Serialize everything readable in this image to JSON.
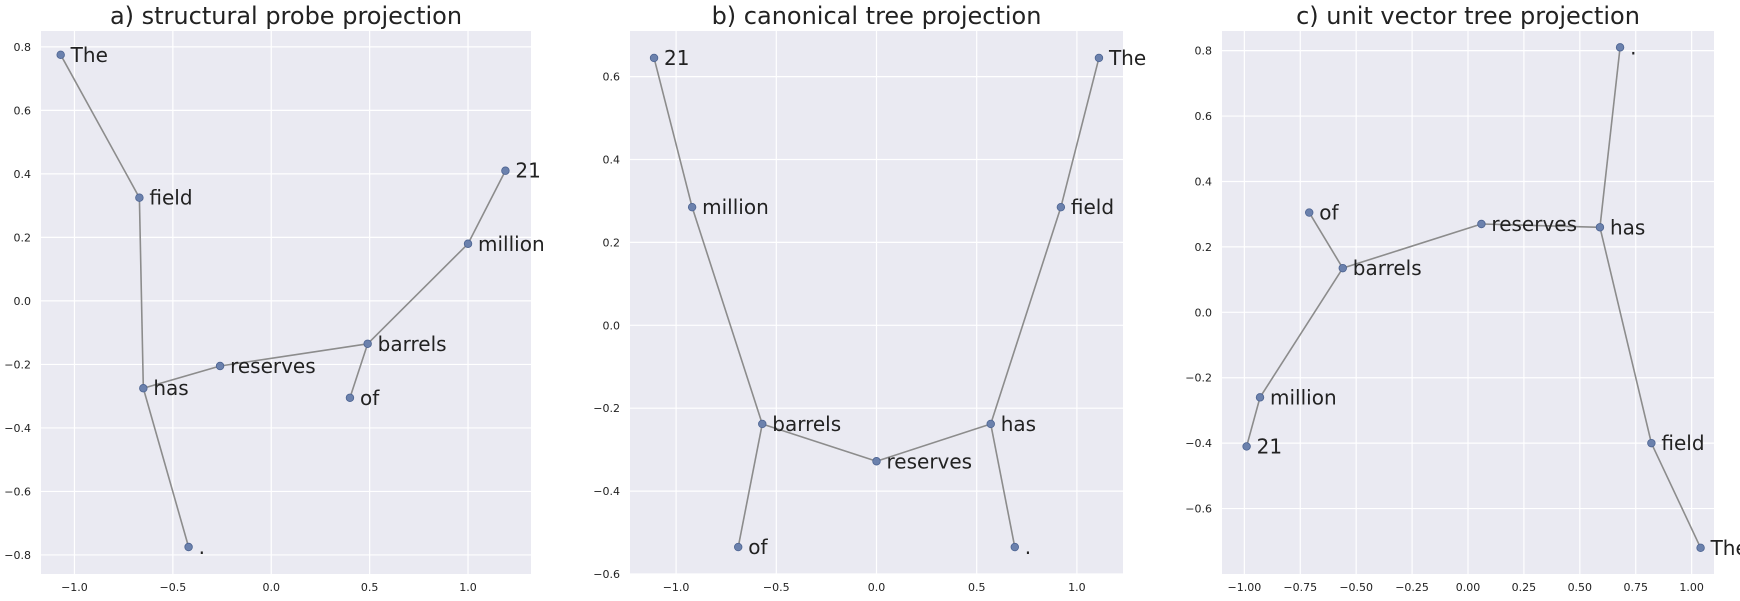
{
  "chart_data": [
    {
      "type": "scatter",
      "title": "a) structural probe projection",
      "xlim": [
        -1.17,
        1.32
      ],
      "ylim": [
        -0.86,
        0.85
      ],
      "xticks": [
        -1.0,
        -0.5,
        0.0,
        0.5,
        1.0
      ],
      "xtick_labels": [
        "−1.0",
        "−0.5",
        "0.0",
        "0.5",
        "1.0"
      ],
      "yticks": [
        -0.8,
        -0.6,
        -0.4,
        -0.2,
        0.0,
        0.2,
        0.4,
        0.6,
        0.8
      ],
      "ytick_labels": [
        "−0.8",
        "−0.6",
        "−0.4",
        "−0.2",
        "0.0",
        "0.2",
        "0.4",
        "0.6",
        "0.8"
      ],
      "grid": true,
      "points": [
        {
          "label": "The",
          "x": -1.07,
          "y": 0.775
        },
        {
          "label": "field",
          "x": -0.67,
          "y": 0.325
        },
        {
          "label": "has",
          "x": -0.65,
          "y": -0.275
        },
        {
          "label": "reserves",
          "x": -0.26,
          "y": -0.205
        },
        {
          "label": "barrels",
          "x": 0.49,
          "y": -0.135
        },
        {
          "label": "of",
          "x": 0.4,
          "y": -0.305
        },
        {
          "label": "million",
          "x": 1.0,
          "y": 0.18
        },
        {
          "label": "21",
          "x": 1.19,
          "y": 0.41
        },
        {
          "label": ".",
          "x": -0.42,
          "y": -0.775
        }
      ],
      "edges": [
        [
          0,
          1
        ],
        [
          1,
          2
        ],
        [
          2,
          3
        ],
        [
          3,
          4
        ],
        [
          4,
          5
        ],
        [
          4,
          6
        ],
        [
          6,
          7
        ],
        [
          2,
          8
        ]
      ]
    },
    {
      "type": "scatter",
      "title": "b) canonical tree projection",
      "xlim": [
        -1.23,
        1.23
      ],
      "ylim": [
        -0.6,
        0.71
      ],
      "xticks": [
        -1.0,
        -0.5,
        0.0,
        0.5,
        1.0
      ],
      "xtick_labels": [
        "−1.0",
        "−0.5",
        "0.0",
        "0.5",
        "1.0"
      ],
      "yticks": [
        -0.6,
        -0.4,
        -0.2,
        0.0,
        0.2,
        0.4,
        0.6
      ],
      "ytick_labels": [
        "−0.6",
        "−0.4",
        "−0.2",
        "0.0",
        "0.2",
        "0.4",
        "0.6"
      ],
      "grid": true,
      "points": [
        {
          "label": "21",
          "x": -1.11,
          "y": 0.645
        },
        {
          "label": "million",
          "x": -0.92,
          "y": 0.285
        },
        {
          "label": "barrels",
          "x": -0.57,
          "y": -0.238
        },
        {
          "label": "of",
          "x": -0.69,
          "y": -0.535
        },
        {
          "label": "reserves",
          "x": 0.0,
          "y": -0.328
        },
        {
          "label": "has",
          "x": 0.57,
          "y": -0.238
        },
        {
          "label": ".",
          "x": 0.69,
          "y": -0.535
        },
        {
          "label": "field",
          "x": 0.92,
          "y": 0.285
        },
        {
          "label": "The",
          "x": 1.11,
          "y": 0.645
        }
      ],
      "edges": [
        [
          0,
          1
        ],
        [
          1,
          2
        ],
        [
          2,
          3
        ],
        [
          2,
          4
        ],
        [
          4,
          5
        ],
        [
          5,
          6
        ],
        [
          5,
          7
        ],
        [
          7,
          8
        ]
      ]
    },
    {
      "type": "scatter",
      "title": "c) unit vector tree projection",
      "xlim": [
        -1.1,
        1.1
      ],
      "ylim": [
        -0.8,
        0.86
      ],
      "xticks": [
        -1.0,
        -0.75,
        -0.5,
        -0.25,
        0.0,
        0.25,
        0.5,
        0.75,
        1.0
      ],
      "xtick_labels": [
        "−1.00",
        "−0.75",
        "−0.50",
        "−0.25",
        "0.00",
        "0.25",
        "0.50",
        "0.75",
        "1.00"
      ],
      "yticks": [
        -0.6,
        -0.4,
        -0.2,
        0.0,
        0.2,
        0.4,
        0.6,
        0.8
      ],
      "ytick_labels": [
        "−0.6",
        "−0.4",
        "−0.2",
        "0.0",
        "0.2",
        "0.4",
        "0.6",
        "0.8"
      ],
      "grid": true,
      "points": [
        {
          "label": "21",
          "x": -0.99,
          "y": -0.41
        },
        {
          "label": "million",
          "x": -0.93,
          "y": -0.26
        },
        {
          "label": "barrels",
          "x": -0.56,
          "y": 0.135
        },
        {
          "label": "of",
          "x": -0.71,
          "y": 0.305
        },
        {
          "label": "reserves",
          "x": 0.06,
          "y": 0.27
        },
        {
          "label": "has",
          "x": 0.59,
          "y": 0.26
        },
        {
          "label": ".",
          "x": 0.68,
          "y": 0.81
        },
        {
          "label": "field",
          "x": 0.82,
          "y": -0.4
        },
        {
          "label": "The",
          "x": 1.04,
          "y": -0.72
        }
      ],
      "edges": [
        [
          0,
          1
        ],
        [
          1,
          2
        ],
        [
          2,
          3
        ],
        [
          2,
          4
        ],
        [
          4,
          5
        ],
        [
          5,
          6
        ],
        [
          5,
          7
        ],
        [
          7,
          8
        ]
      ]
    }
  ]
}
